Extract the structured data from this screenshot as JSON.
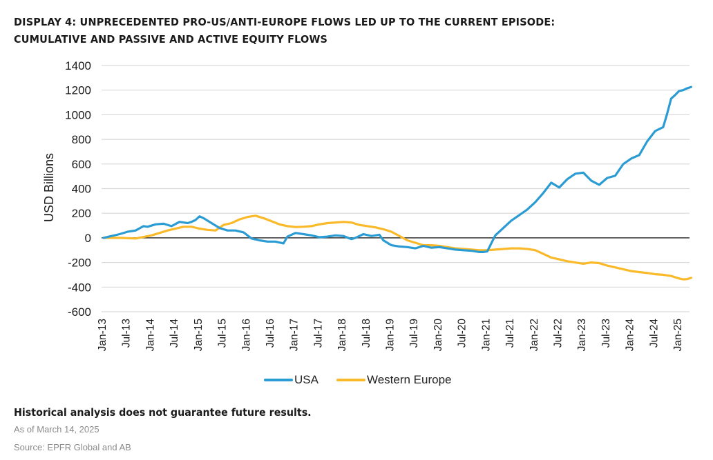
{
  "title_lines": [
    "DISPLAY 4: UNPRECEDENTED PRO-US/ANTI-EUROPE FLOWS LED UP TO THE CURRENT EPISODE:",
    "CUMULATIVE AND PASSIVE AND ACTIVE EQUITY FLOWS"
  ],
  "footer": {
    "note": "Historical analysis does not guarantee future results.",
    "as_of": "As of March 14, 2025",
    "source": "Source: EPFR Global and AB"
  },
  "colors": {
    "usa": "#2b9bd3",
    "western_europe": "#f9b928",
    "grid": "#d9d9d9",
    "zero_line": "#333333"
  },
  "chart_data": {
    "type": "line",
    "title": "Cumulative and Passive and Active Equity Flows",
    "xlabel": "",
    "ylabel": "USD Billions",
    "ylim": [
      -600,
      1400
    ],
    "yticks": [
      -600,
      -400,
      -200,
      0,
      200,
      400,
      600,
      800,
      1000,
      1200,
      1400
    ],
    "grid": true,
    "legend_position": "bottom",
    "x_unit": "months since Jan-13",
    "xlim": [
      0,
      148
    ],
    "xtick_labels": [
      "Jan-13",
      "Jul-13",
      "Jan-14",
      "Jul-14",
      "Jan-15",
      "Jul-15",
      "Jan-16",
      "Jul-16",
      "Jan-17",
      "Jul-17",
      "Jan-18",
      "Jul-18",
      "Jan-19",
      "Jul-19",
      "Jan-20",
      "Jul-20",
      "Jan-21",
      "Jul-21",
      "Jan-22",
      "Jul-22",
      "Jan-23",
      "Jul-23",
      "Jan-24",
      "Jul-24",
      "Jan-25"
    ],
    "xtick_months": [
      0,
      6,
      12,
      18,
      24,
      30,
      36,
      42,
      48,
      54,
      60,
      66,
      72,
      78,
      84,
      90,
      96,
      102,
      108,
      114,
      120,
      126,
      132,
      138,
      144
    ],
    "series": [
      {
        "name": "USA",
        "color_key": "usa",
        "x": [
          0,
          2,
          4,
          6,
          8,
          10,
          11,
          13,
          15,
          17,
          19,
          21,
          22,
          23,
          24,
          25,
          27,
          29,
          31,
          33,
          35,
          37,
          39,
          41,
          43,
          45,
          46,
          48,
          50,
          52,
          54,
          56,
          58,
          60,
          62,
          63,
          65,
          67,
          69,
          70,
          72,
          74,
          76,
          78,
          80,
          82,
          84,
          86,
          88,
          90,
          92,
          94,
          95,
          96,
          97,
          98,
          100,
          102,
          104,
          106,
          108,
          110,
          112,
          114,
          116,
          118,
          120,
          122,
          124,
          126,
          128,
          130,
          132,
          134,
          136,
          138,
          140,
          141,
          142,
          143,
          144,
          145,
          146,
          147
        ],
        "y": [
          0,
          15,
          30,
          50,
          60,
          95,
          90,
          110,
          115,
          95,
          130,
          120,
          130,
          145,
          175,
          160,
          120,
          80,
          60,
          60,
          45,
          -5,
          -20,
          -30,
          -30,
          -45,
          10,
          40,
          30,
          20,
          5,
          10,
          20,
          15,
          -10,
          0,
          30,
          15,
          25,
          -20,
          -60,
          -70,
          -75,
          -85,
          -65,
          -80,
          -75,
          -85,
          -95,
          -100,
          -105,
          -115,
          -115,
          -110,
          -45,
          20,
          80,
          140,
          185,
          230,
          290,
          364,
          448,
          409,
          476,
          521,
          530,
          465,
          431,
          487,
          504,
          599,
          644,
          672,
          784,
          868,
          900,
          1008,
          1131,
          1160,
          1193,
          1200,
          1215,
          1226
        ]
      },
      {
        "name": "Western Europe",
        "color_key": "western_europe",
        "x": [
          0,
          4,
          8,
          12,
          16,
          20,
          22,
          24,
          26,
          28,
          30,
          32,
          34,
          36,
          38,
          40,
          42,
          44,
          46,
          48,
          50,
          52,
          54,
          56,
          58,
          60,
          62,
          64,
          66,
          68,
          70,
          72,
          74,
          76,
          78,
          80,
          82,
          84,
          86,
          88,
          90,
          92,
          94,
          96,
          98,
          100,
          102,
          104,
          106,
          108,
          110,
          112,
          114,
          116,
          118,
          120,
          122,
          124,
          126,
          128,
          130,
          132,
          134,
          136,
          138,
          140,
          141,
          142,
          143,
          144,
          145,
          146,
          147
        ],
        "y": [
          0,
          0,
          -5,
          20,
          60,
          90,
          90,
          75,
          65,
          60,
          105,
          120,
          150,
          170,
          180,
          160,
          135,
          110,
          95,
          88,
          90,
          95,
          110,
          120,
          125,
          130,
          125,
          105,
          95,
          85,
          70,
          50,
          15,
          -20,
          -40,
          -60,
          -60,
          -65,
          -75,
          -85,
          -90,
          -95,
          -100,
          -100,
          -95,
          -90,
          -85,
          -85,
          -90,
          -100,
          -130,
          -160,
          -175,
          -190,
          -200,
          -210,
          -200,
          -205,
          -225,
          -240,
          -255,
          -270,
          -278,
          -285,
          -295,
          -300,
          -305,
          -310,
          -320,
          -330,
          -337,
          -335,
          -325
        ]
      }
    ]
  }
}
